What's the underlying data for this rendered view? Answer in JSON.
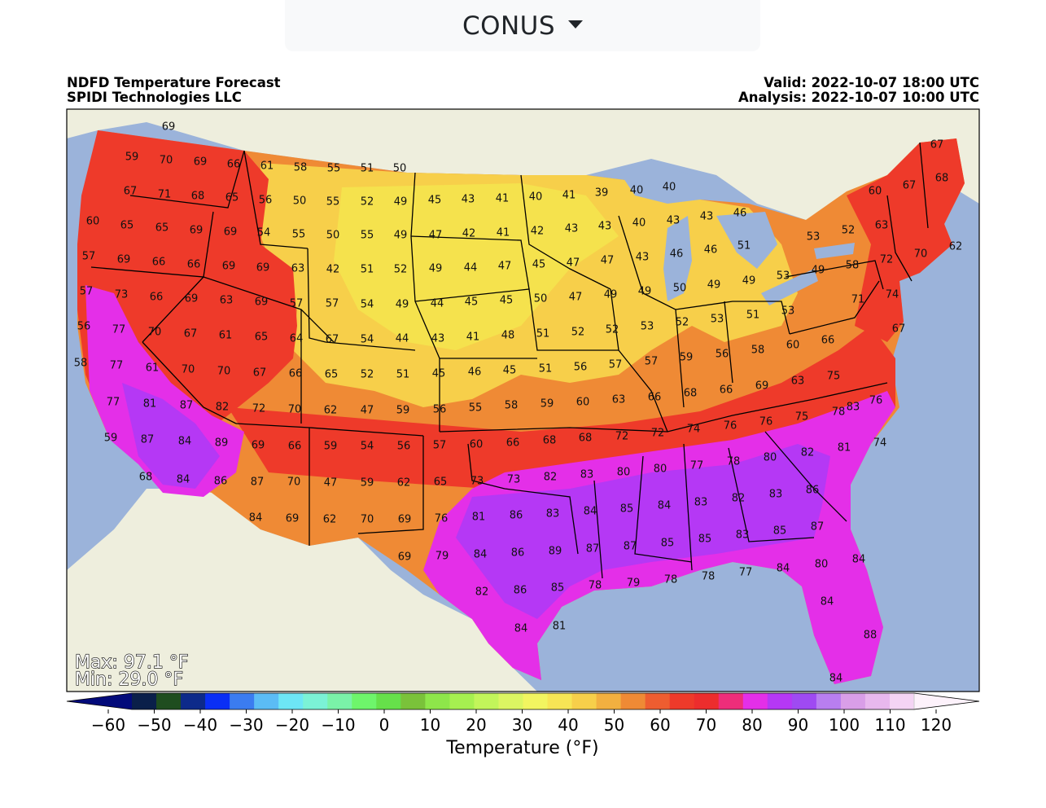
{
  "region_selector": {
    "label": "CONUS",
    "icon": "caret-down-icon"
  },
  "header": {
    "title": "NDFD Temperature Forecast",
    "source": "SPIDI Technologies LLC",
    "valid": "Valid: 2022-10-07 18:00 UTC",
    "analysis": "Analysis: 2022-10-07 10:00 UTC"
  },
  "stats": {
    "max": "Max: 97.1 °F",
    "min": "Min: 29.0 °F"
  },
  "colorbar": {
    "label": "Temperature (°F)",
    "ticks": [
      "−60",
      "−50",
      "−40",
      "−30",
      "−20",
      "−10",
      "0",
      "10",
      "20",
      "30",
      "40",
      "50",
      "60",
      "70",
      "80",
      "90",
      "100",
      "110",
      "120"
    ],
    "colors": [
      "#020a7a",
      "#0a1f4a",
      "#1f4d1f",
      "#0d2a8a",
      "#0a2ff5",
      "#3b7cf0",
      "#5bbcf5",
      "#6de6f5",
      "#7bf2d6",
      "#7af2a8",
      "#6ef56b",
      "#66e04a",
      "#7ac23a",
      "#8ee64a",
      "#a6f050",
      "#c2f55a",
      "#dcf562",
      "#f2f560",
      "#f7e555",
      "#f7cf4a",
      "#f2b040",
      "#ef8a35",
      "#ee5d30",
      "#ee3a2a",
      "#ec2d2d",
      "#ee2d7a",
      "#e42fe8",
      "#b538f5",
      "#9f4af2",
      "#b87ef0",
      "#d99ee8",
      "#e8b8ee",
      "#f4d4f4",
      "#fdf2fb"
    ]
  },
  "map_labels": [
    {
      "v": "69"
    },
    {
      "v": "59"
    },
    {
      "v": "70"
    },
    {
      "v": "69"
    },
    {
      "v": "66"
    },
    {
      "v": "61"
    },
    {
      "v": "58"
    },
    {
      "v": "55"
    },
    {
      "v": "51"
    },
    {
      "v": "50"
    },
    {
      "v": "67"
    },
    {
      "v": "71"
    },
    {
      "v": "68"
    },
    {
      "v": "65"
    },
    {
      "v": "56"
    },
    {
      "v": "50"
    },
    {
      "v": "55"
    },
    {
      "v": "52"
    },
    {
      "v": "49"
    },
    {
      "v": "45"
    },
    {
      "v": "43"
    },
    {
      "v": "41"
    },
    {
      "v": "40"
    },
    {
      "v": "41"
    },
    {
      "v": "39"
    },
    {
      "v": "40"
    },
    {
      "v": "40"
    },
    {
      "v": "60"
    },
    {
      "v": "65"
    },
    {
      "v": "65"
    },
    {
      "v": "69"
    },
    {
      "v": "69"
    },
    {
      "v": "54"
    },
    {
      "v": "55"
    },
    {
      "v": "50"
    },
    {
      "v": "55"
    },
    {
      "v": "49"
    },
    {
      "v": "47"
    },
    {
      "v": "42"
    },
    {
      "v": "41"
    },
    {
      "v": "42"
    },
    {
      "v": "43"
    },
    {
      "v": "43"
    },
    {
      "v": "40"
    },
    {
      "v": "43"
    },
    {
      "v": "43"
    },
    {
      "v": "46"
    },
    {
      "v": "57"
    },
    {
      "v": "69"
    },
    {
      "v": "66"
    },
    {
      "v": "66"
    },
    {
      "v": "69"
    },
    {
      "v": "69"
    },
    {
      "v": "63"
    },
    {
      "v": "42"
    },
    {
      "v": "51"
    },
    {
      "v": "52"
    },
    {
      "v": "49"
    },
    {
      "v": "44"
    },
    {
      "v": "47"
    },
    {
      "v": "45"
    },
    {
      "v": "47"
    },
    {
      "v": "47"
    },
    {
      "v": "43"
    },
    {
      "v": "46"
    },
    {
      "v": "46"
    },
    {
      "v": "51"
    },
    {
      "v": "57"
    },
    {
      "v": "73"
    },
    {
      "v": "66"
    },
    {
      "v": "69"
    },
    {
      "v": "63"
    },
    {
      "v": "69"
    },
    {
      "v": "57"
    },
    {
      "v": "57"
    },
    {
      "v": "54"
    },
    {
      "v": "49"
    },
    {
      "v": "44"
    },
    {
      "v": "45"
    },
    {
      "v": "45"
    },
    {
      "v": "50"
    },
    {
      "v": "47"
    },
    {
      "v": "49"
    },
    {
      "v": "49"
    },
    {
      "v": "50"
    },
    {
      "v": "49"
    },
    {
      "v": "56"
    },
    {
      "v": "77"
    },
    {
      "v": "70"
    },
    {
      "v": "67"
    },
    {
      "v": "61"
    },
    {
      "v": "65"
    },
    {
      "v": "64"
    },
    {
      "v": "67"
    },
    {
      "v": "54"
    },
    {
      "v": "44"
    },
    {
      "v": "43"
    },
    {
      "v": "41"
    },
    {
      "v": "48"
    },
    {
      "v": "51"
    },
    {
      "v": "52"
    },
    {
      "v": "52"
    },
    {
      "v": "53"
    },
    {
      "v": "52"
    },
    {
      "v": "53"
    },
    {
      "v": "51"
    },
    {
      "v": "53"
    },
    {
      "v": "58"
    },
    {
      "v": "77"
    },
    {
      "v": "61"
    },
    {
      "v": "70"
    },
    {
      "v": "70"
    },
    {
      "v": "67"
    },
    {
      "v": "66"
    },
    {
      "v": "65"
    },
    {
      "v": "52"
    },
    {
      "v": "51"
    },
    {
      "v": "45"
    },
    {
      "v": "46"
    },
    {
      "v": "45"
    },
    {
      "v": "51"
    },
    {
      "v": "56"
    },
    {
      "v": "57"
    },
    {
      "v": "57"
    },
    {
      "v": "59"
    },
    {
      "v": "56"
    },
    {
      "v": "58"
    },
    {
      "v": "60"
    },
    {
      "v": "77"
    },
    {
      "v": "81"
    },
    {
      "v": "87"
    },
    {
      "v": "82"
    },
    {
      "v": "72"
    },
    {
      "v": "70"
    },
    {
      "v": "62"
    },
    {
      "v": "47"
    },
    {
      "v": "59"
    },
    {
      "v": "56"
    },
    {
      "v": "55"
    },
    {
      "v": "58"
    },
    {
      "v": "59"
    },
    {
      "v": "60"
    },
    {
      "v": "63"
    },
    {
      "v": "66"
    },
    {
      "v": "68"
    },
    {
      "v": "66"
    },
    {
      "v": "69"
    },
    {
      "v": "63"
    },
    {
      "v": "75"
    },
    {
      "v": "59"
    },
    {
      "v": "87"
    },
    {
      "v": "84"
    },
    {
      "v": "89"
    },
    {
      "v": "69"
    },
    {
      "v": "66"
    },
    {
      "v": "59"
    },
    {
      "v": "54"
    },
    {
      "v": "56"
    },
    {
      "v": "57"
    },
    {
      "v": "60"
    },
    {
      "v": "66"
    },
    {
      "v": "68"
    },
    {
      "v": "68"
    },
    {
      "v": "72"
    },
    {
      "v": "72"
    },
    {
      "v": "74"
    },
    {
      "v": "76"
    },
    {
      "v": "76"
    },
    {
      "v": "75"
    },
    {
      "v": "78"
    },
    {
      "v": "68"
    },
    {
      "v": "84"
    },
    {
      "v": "86"
    },
    {
      "v": "87"
    },
    {
      "v": "70"
    },
    {
      "v": "47"
    },
    {
      "v": "59"
    },
    {
      "v": "62"
    },
    {
      "v": "65"
    },
    {
      "v": "73"
    },
    {
      "v": "73"
    },
    {
      "v": "82"
    },
    {
      "v": "83"
    },
    {
      "v": "80"
    },
    {
      "v": "80"
    },
    {
      "v": "77"
    },
    {
      "v": "78"
    },
    {
      "v": "80"
    },
    {
      "v": "82"
    },
    {
      "v": "81"
    },
    {
      "v": "84"
    },
    {
      "v": "69"
    },
    {
      "v": "62"
    },
    {
      "v": "70"
    },
    {
      "v": "69"
    },
    {
      "v": "76"
    },
    {
      "v": "81"
    },
    {
      "v": "86"
    },
    {
      "v": "83"
    },
    {
      "v": "84"
    },
    {
      "v": "85"
    },
    {
      "v": "84"
    },
    {
      "v": "83"
    },
    {
      "v": "82"
    },
    {
      "v": "83"
    },
    {
      "v": "86"
    },
    {
      "v": "69"
    },
    {
      "v": "79"
    },
    {
      "v": "84"
    },
    {
      "v": "86"
    },
    {
      "v": "89"
    },
    {
      "v": "87"
    },
    {
      "v": "87"
    },
    {
      "v": "85"
    },
    {
      "v": "85"
    },
    {
      "v": "83"
    },
    {
      "v": "85"
    },
    {
      "v": "87"
    },
    {
      "v": "82"
    },
    {
      "v": "86"
    },
    {
      "v": "85"
    },
    {
      "v": "78"
    },
    {
      "v": "79"
    },
    {
      "v": "78"
    },
    {
      "v": "78"
    },
    {
      "v": "77"
    },
    {
      "v": "84"
    },
    {
      "v": "80"
    },
    {
      "v": "84"
    },
    {
      "v": "84"
    },
    {
      "v": "84"
    },
    {
      "v": "81"
    },
    {
      "v": "88"
    },
    {
      "v": "84"
    },
    {
      "v": "67"
    },
    {
      "v": "67"
    },
    {
      "v": "68"
    },
    {
      "v": "60"
    },
    {
      "v": "53"
    },
    {
      "v": "52"
    },
    {
      "v": "63"
    },
    {
      "v": "62"
    },
    {
      "v": "49"
    },
    {
      "v": "58"
    },
    {
      "v": "72"
    },
    {
      "v": "70"
    },
    {
      "v": "71"
    },
    {
      "v": "74"
    },
    {
      "v": "67"
    },
    {
      "v": "66"
    },
    {
      "v": "83"
    },
    {
      "v": "76"
    },
    {
      "v": "74"
    },
    {
      "v": "49"
    },
    {
      "v": "53"
    }
  ]
}
